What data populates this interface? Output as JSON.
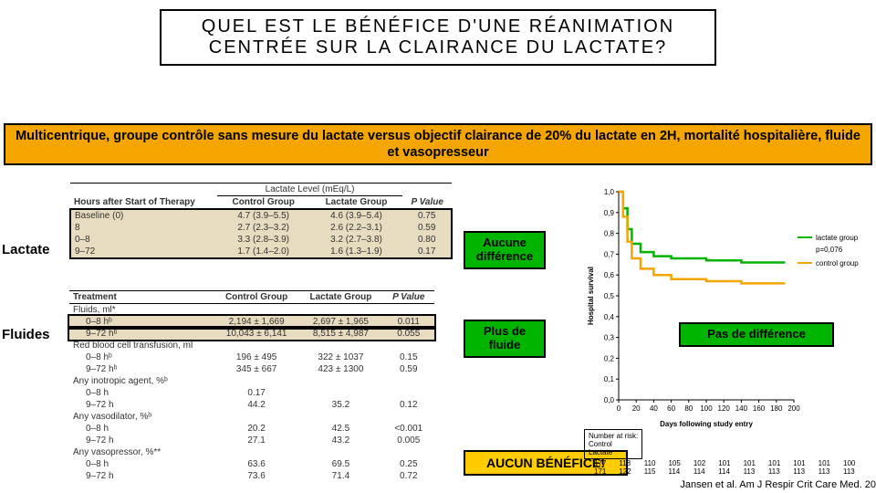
{
  "title": "QUEL EST LE BÉNÉFICE D'UNE RÉANIMATION CENTRÉE SUR LA CLAIRANCE DU LACTATE?",
  "banner": "Multicentrique, groupe contrôle sans mesure du lactate versus objectif clairance de 20% du lactate en 2H, mortalité hospitalière, fluide et vasopresseur",
  "sideLabels": {
    "lactate": "Lactate",
    "fluides": "Fluides"
  },
  "callouts": {
    "noDiff": "Aucune différence",
    "moreFluid": "Plus de fluide",
    "noDiff2": "Pas de différence",
    "noBenefit": "AUCUN BÉNÉFICE!"
  },
  "table1": {
    "header_top": "Lactate Level (mEq/L)",
    "cols": [
      "Hours after Start of Therapy",
      "Control Group",
      "Lactate Group",
      "P Value"
    ],
    "rows": [
      [
        "Baseline (0)",
        "4.7 (3.9–5.5)",
        "4.6 (3.9–5.4)",
        "0.75"
      ],
      [
        "8",
        "2.7 (2.3–3.2)",
        "2.6 (2.2–3.1)",
        "0.59"
      ],
      [
        "0–8",
        "3.3 (2.8–3.9)",
        "3.2 (2.7–3.8)",
        "0.80"
      ],
      [
        "9–72",
        "1.7 (1.4–2.0)",
        "1.6 (1.3–1.9)",
        "0.17"
      ]
    ]
  },
  "table2": {
    "cols": [
      "Treatment",
      "Control Group",
      "Lactate Group",
      "P Value"
    ],
    "rows": [
      [
        "Fluids, ml*",
        "",
        "",
        ""
      ],
      [
        "   0–8 hᵇ",
        "2,194 ± 1,669",
        "2,697 ± 1,965",
        "0.011"
      ],
      [
        "   9–72 hᵇ",
        "10,043 ± 6,141",
        "8,515 ± 4,987",
        "0.055"
      ],
      [
        "Red blood cell transfusion, ml",
        "",
        "",
        ""
      ],
      [
        "   0–8 hᵇ",
        "196 ± 495",
        "322 ± 1037",
        "0.15"
      ],
      [
        "   9–72 hᵇ",
        "345 ± 667",
        "423 ± 1300",
        "0.59"
      ],
      [
        "Any inotropic agent, %ᵇ",
        "",
        "",
        ""
      ],
      [
        "   0–8 h",
        "0.17",
        "",
        ""
      ],
      [
        "   9–72 h",
        "44.2",
        "35.2",
        "0.12"
      ],
      [
        "Any vasodilator, %ᵇ",
        "",
        "",
        ""
      ],
      [
        "   0–8 h",
        "20.2",
        "42.5",
        "<0.001"
      ],
      [
        "   9–72 h",
        "27.1",
        "43.2",
        "0.005"
      ],
      [
        "Any vasopressor, %**",
        "",
        "",
        ""
      ],
      [
        "   0–8 h",
        "63.6",
        "69.5",
        "0.25"
      ],
      [
        "   9–72 h",
        "73.6",
        "71.4",
        "0.72"
      ]
    ],
    "highlightRows": [
      1,
      2
    ]
  },
  "chart": {
    "ylabel": "Hospital survival",
    "xlabel": "Days following study entry",
    "ylim": [
      0.0,
      1.0
    ],
    "ytick_step": 0.1,
    "xlim": [
      0,
      200
    ],
    "xtick_step": 20,
    "background_color": "#ffffff",
    "grid": false,
    "line_width": 2.5,
    "series": [
      {
        "name": "lactate group",
        "color": "#00b400",
        "points": [
          [
            0,
            1.0
          ],
          [
            5,
            0.92
          ],
          [
            10,
            0.82
          ],
          [
            15,
            0.75
          ],
          [
            25,
            0.71
          ],
          [
            40,
            0.69
          ],
          [
            60,
            0.68
          ],
          [
            100,
            0.67
          ],
          [
            140,
            0.66
          ],
          [
            190,
            0.66
          ]
        ]
      },
      {
        "name": "control group",
        "color": "#f4a500",
        "points": [
          [
            0,
            1.0
          ],
          [
            5,
            0.88
          ],
          [
            10,
            0.76
          ],
          [
            15,
            0.68
          ],
          [
            25,
            0.63
          ],
          [
            40,
            0.6
          ],
          [
            60,
            0.58
          ],
          [
            100,
            0.57
          ],
          [
            140,
            0.56
          ],
          [
            190,
            0.56
          ]
        ]
      }
    ],
    "p_text": "p=0,076",
    "legend": [
      {
        "label": "lactate group",
        "color": "#00b400"
      },
      {
        "label": "control group",
        "color": "#f4a500"
      }
    ]
  },
  "numberAtRisk": {
    "title": "Number at risk:",
    "rows": [
      [
        "Control",
        "177",
        "118",
        "110",
        "105",
        "102",
        "101",
        "101",
        "101",
        "101",
        "101",
        "100"
      ],
      [
        "Lactate",
        "171",
        "122",
        "115",
        "114",
        "114",
        "114",
        "113",
        "113",
        "113",
        "113",
        "113"
      ]
    ]
  },
  "citation": "Jansen et al. Am J Respir Crit Care Med. 20"
}
